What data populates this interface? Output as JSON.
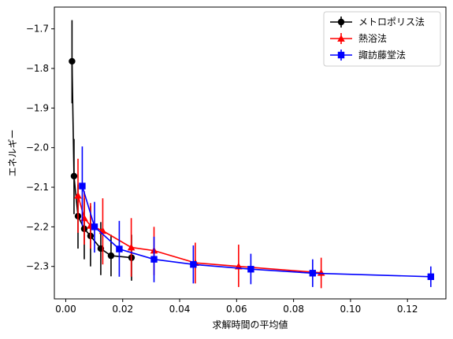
{
  "chart_data": {
    "type": "line",
    "title": "",
    "xlabel": "求解時間の平均値",
    "ylabel": "エネルギー",
    "xlim": [
      -0.004,
      0.1335
    ],
    "ylim": [
      -2.382,
      -1.645
    ],
    "xticks": [
      0.0,
      0.02,
      0.04,
      0.06,
      0.08,
      0.1,
      0.12
    ],
    "xtick_labels": [
      "0.00",
      "0.02",
      "0.04",
      "0.06",
      "0.08",
      "0.10",
      "0.12"
    ],
    "yticks": [
      -2.3,
      -2.2,
      -2.1,
      -2.0,
      -1.9,
      -1.8,
      -1.7
    ],
    "ytick_labels": [
      "−2.3",
      "−2.2",
      "−2.1",
      "−2.0",
      "−1.9",
      "−1.8",
      "−1.7"
    ],
    "grid": false,
    "legend": "top-right",
    "series": [
      {
        "name": "メトロポリス法",
        "color": "#000000",
        "marker": "circle",
        "points": [
          {
            "x": 0.0022,
            "y": -1.782,
            "lo": -1.888,
            "hi": -1.678
          },
          {
            "x": 0.0029,
            "y": -2.072,
            "lo": -2.168,
            "hi": -1.978
          },
          {
            "x": 0.0043,
            "y": -2.173,
            "lo": -2.255,
            "hi": -2.093
          },
          {
            "x": 0.0065,
            "y": -2.205,
            "lo": -2.282,
            "hi": -2.128
          },
          {
            "x": 0.0087,
            "y": -2.223,
            "lo": -2.3,
            "hi": -2.147
          },
          {
            "x": 0.0123,
            "y": -2.255,
            "lo": -2.322,
            "hi": -2.188
          },
          {
            "x": 0.0159,
            "y": -2.273,
            "lo": -2.325,
            "hi": -2.22
          },
          {
            "x": 0.0231,
            "y": -2.278,
            "lo": -2.336,
            "hi": -2.22
          }
        ]
      },
      {
        "name": "熱浴法",
        "color": "#ff0000",
        "marker": "triangle",
        "points": [
          {
            "x": 0.0043,
            "y": -2.121,
            "lo": -2.215,
            "hi": -2.028
          },
          {
            "x": 0.0065,
            "y": -2.178,
            "lo": -2.245,
            "hi": -2.11
          },
          {
            "x": 0.0087,
            "y": -2.197,
            "lo": -2.255,
            "hi": -2.14
          },
          {
            "x": 0.013,
            "y": -2.21,
            "lo": -2.295,
            "hi": -2.128
          },
          {
            "x": 0.023,
            "y": -2.252,
            "lo": -2.326,
            "hi": -2.178
          },
          {
            "x": 0.031,
            "y": -2.26,
            "lo": -2.322,
            "hi": -2.2
          },
          {
            "x": 0.0455,
            "y": -2.291,
            "lo": -2.343,
            "hi": -2.24
          },
          {
            "x": 0.0607,
            "y": -2.3,
            "lo": -2.352,
            "hi": -2.245
          },
          {
            "x": 0.0897,
            "y": -2.316,
            "lo": -2.355,
            "hi": -2.278
          }
        ]
      },
      {
        "name": "諏訪藤堂法",
        "color": "#0000ff",
        "marker": "square",
        "points": [
          {
            "x": 0.0058,
            "y": -2.097,
            "lo": -2.198,
            "hi": -1.997
          },
          {
            "x": 0.0101,
            "y": -2.2,
            "lo": -2.265,
            "hi": -2.137
          },
          {
            "x": 0.0188,
            "y": -2.256,
            "lo": -2.326,
            "hi": -2.185
          },
          {
            "x": 0.031,
            "y": -2.282,
            "lo": -2.34,
            "hi": -2.225
          },
          {
            "x": 0.0448,
            "y": -2.295,
            "lo": -2.343,
            "hi": -2.247
          },
          {
            "x": 0.065,
            "y": -2.307,
            "lo": -2.345,
            "hi": -2.268
          },
          {
            "x": 0.0867,
            "y": -2.317,
            "lo": -2.352,
            "hi": -2.282
          },
          {
            "x": 0.1282,
            "y": -2.326,
            "lo": -2.352,
            "hi": -2.3
          }
        ]
      }
    ]
  }
}
